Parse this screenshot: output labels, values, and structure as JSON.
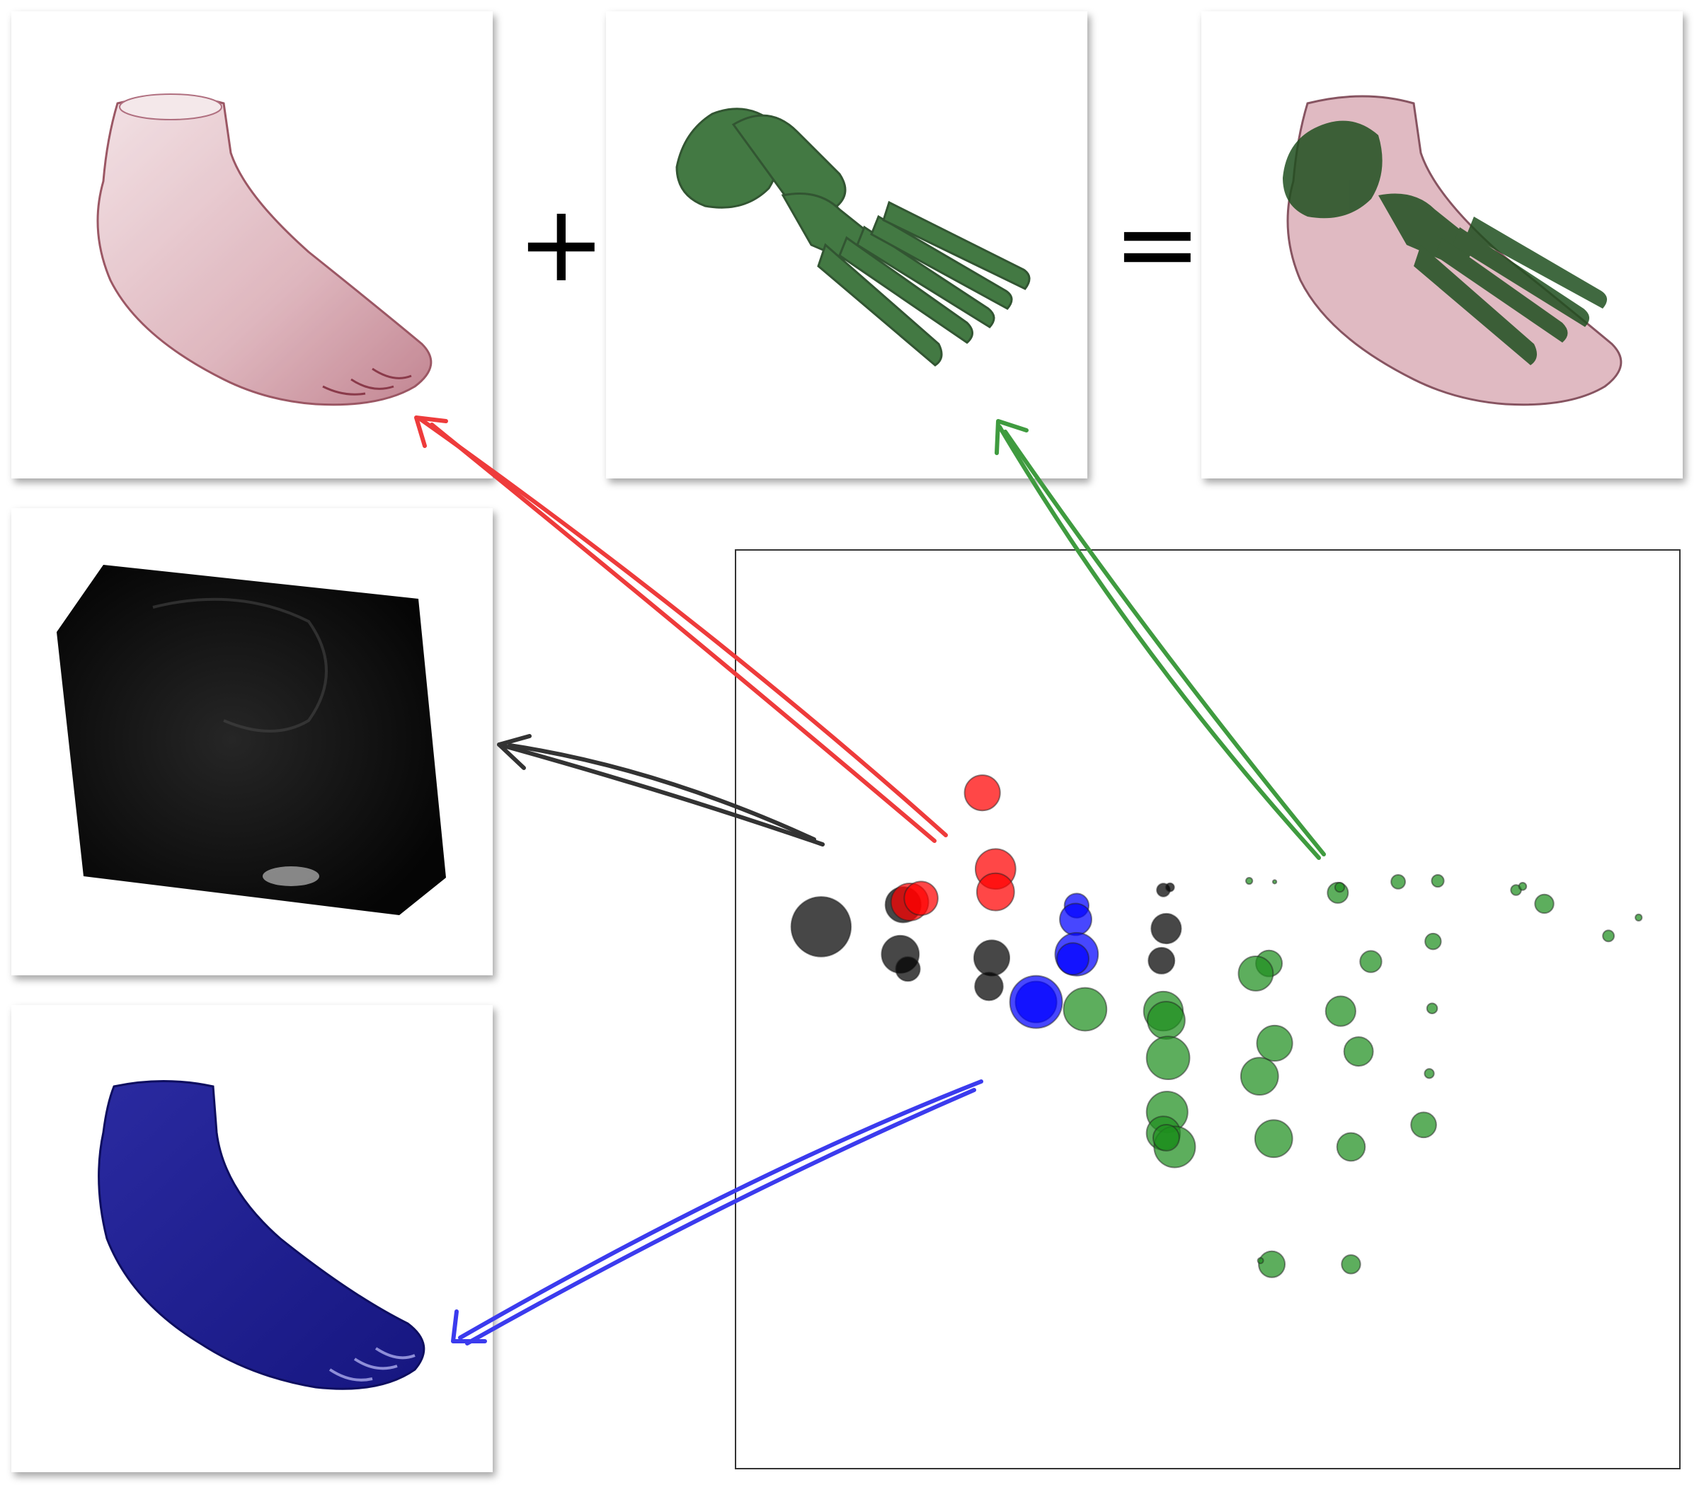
{
  "operators": {
    "plus": "+",
    "equals": "="
  },
  "panels": {
    "skin": {
      "description_icon": "foot-skin-render-icon",
      "color": "#c58a96"
    },
    "bone": {
      "description_icon": "foot-bone-render-icon",
      "color": "#2f6b2f"
    },
    "combined": {
      "description_icon": "foot-combined-render-icon",
      "color": "#3a4a2a"
    },
    "noise": {
      "description_icon": "noise-volume-render-icon",
      "color": "#000000"
    },
    "blue": {
      "description_icon": "foot-blue-render-icon",
      "color": "#1e1e96"
    }
  },
  "arrows": [
    {
      "name": "red-arrow",
      "color": "#ee3b3b"
    },
    {
      "name": "green-arrow",
      "color": "#3f9b3f"
    },
    {
      "name": "black-arrow",
      "color": "#333333"
    },
    {
      "name": "blue-arrow",
      "color": "#3b3bee"
    }
  ],
  "chart_data": {
    "type": "scatter",
    "series": [
      {
        "color": "#000000",
        "points": [
          {
            "x": 0.09,
            "y": 0.41,
            "r": 64
          },
          {
            "x": 0.177,
            "y": 0.386,
            "r": 38
          },
          {
            "x": 0.174,
            "y": 0.44,
            "r": 40
          },
          {
            "x": 0.182,
            "y": 0.456,
            "r": 26
          },
          {
            "x": 0.271,
            "y": 0.444,
            "r": 38
          },
          {
            "x": 0.268,
            "y": 0.475,
            "r": 30
          },
          {
            "x": 0.453,
            "y": 0.37,
            "r": 14
          },
          {
            "x": 0.46,
            "y": 0.367,
            "r": 9
          },
          {
            "x": 0.456,
            "y": 0.412,
            "r": 32
          },
          {
            "x": 0.451,
            "y": 0.447,
            "r": 28
          }
        ]
      },
      {
        "color": "#ff0000",
        "points": [
          {
            "x": 0.261,
            "y": 0.264,
            "r": 38
          },
          {
            "x": 0.184,
            "y": 0.383,
            "r": 40
          },
          {
            "x": 0.196,
            "y": 0.379,
            "r": 36
          },
          {
            "x": 0.275,
            "y": 0.347,
            "r": 43
          },
          {
            "x": 0.275,
            "y": 0.372,
            "r": 40
          }
        ]
      },
      {
        "color": "#0000ff",
        "points": [
          {
            "x": 0.361,
            "y": 0.387,
            "r": 26
          },
          {
            "x": 0.36,
            "y": 0.402,
            "r": 34
          },
          {
            "x": 0.361,
            "y": 0.44,
            "r": 46
          },
          {
            "x": 0.357,
            "y": 0.445,
            "r": 34
          },
          {
            "x": 0.318,
            "y": 0.492,
            "r": 44
          },
          {
            "x": 0.318,
            "y": 0.492,
            "r": 56
          }
        ]
      },
      {
        "color": "#1f8f1f",
        "points": [
          {
            "x": 0.544,
            "y": 0.36,
            "r": 7
          },
          {
            "x": 0.571,
            "y": 0.361,
            "r": 4
          },
          {
            "x": 0.638,
            "y": 0.373,
            "r": 22
          },
          {
            "x": 0.64,
            "y": 0.367,
            "r": 10
          },
          {
            "x": 0.702,
            "y": 0.361,
            "r": 15
          },
          {
            "x": 0.744,
            "y": 0.36,
            "r": 13
          },
          {
            "x": 0.827,
            "y": 0.37,
            "r": 11
          },
          {
            "x": 0.834,
            "y": 0.366,
            "r": 8
          },
          {
            "x": 0.857,
            "y": 0.385,
            "r": 20
          },
          {
            "x": 0.925,
            "y": 0.42,
            "r": 12
          },
          {
            "x": 0.957,
            "y": 0.4,
            "r": 7
          },
          {
            "x": 0.739,
            "y": 0.426,
            "r": 17
          },
          {
            "x": 0.673,
            "y": 0.448,
            "r": 23
          },
          {
            "x": 0.565,
            "y": 0.45,
            "r": 28
          },
          {
            "x": 0.551,
            "y": 0.461,
            "r": 37
          },
          {
            "x": 0.641,
            "y": 0.502,
            "r": 32
          },
          {
            "x": 0.738,
            "y": 0.499,
            "r": 11
          },
          {
            "x": 0.571,
            "y": 0.537,
            "r": 38
          },
          {
            "x": 0.555,
            "y": 0.573,
            "r": 40
          },
          {
            "x": 0.66,
            "y": 0.546,
            "r": 31
          },
          {
            "x": 0.37,
            "y": 0.5,
            "r": 46
          },
          {
            "x": 0.453,
            "y": 0.502,
            "r": 42
          },
          {
            "x": 0.456,
            "y": 0.512,
            "r": 40
          },
          {
            "x": 0.458,
            "y": 0.553,
            "r": 46
          },
          {
            "x": 0.457,
            "y": 0.612,
            "r": 44
          },
          {
            "x": 0.453,
            "y": 0.635,
            "r": 36
          },
          {
            "x": 0.465,
            "y": 0.65,
            "r": 44
          },
          {
            "x": 0.456,
            "y": 0.64,
            "r": 28
          },
          {
            "x": 0.735,
            "y": 0.57,
            "r": 10
          },
          {
            "x": 0.729,
            "y": 0.626,
            "r": 27
          },
          {
            "x": 0.57,
            "y": 0.641,
            "r": 40
          },
          {
            "x": 0.652,
            "y": 0.65,
            "r": 30
          },
          {
            "x": 0.568,
            "y": 0.778,
            "r": 28
          },
          {
            "x": 0.652,
            "y": 0.778,
            "r": 20
          },
          {
            "x": 0.556,
            "y": 0.774,
            "r": 6
          }
        ]
      }
    ]
  }
}
